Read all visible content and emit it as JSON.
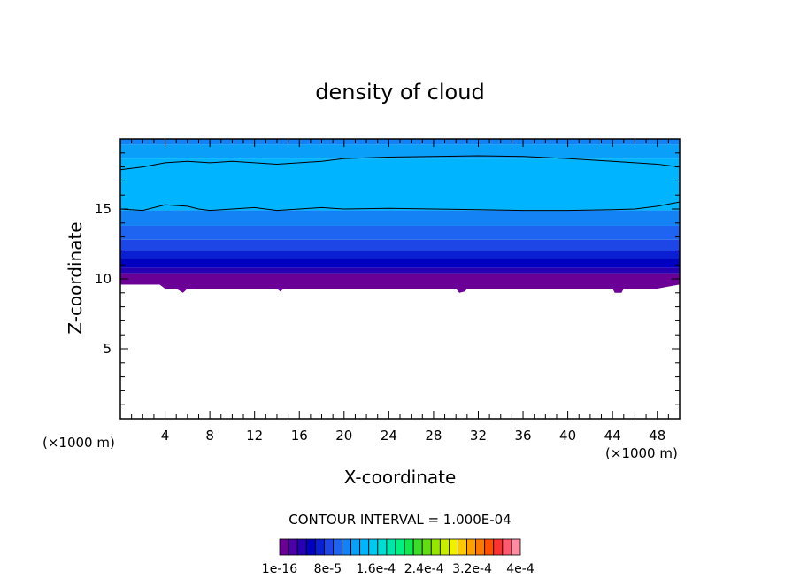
{
  "chart_data": {
    "type": "heatmap",
    "title": "density of cloud",
    "xlabel": "X-coordinate",
    "ylabel": "Z-coordinate",
    "x_unit": "(×1000 m)",
    "z_unit": "(×1000 m)",
    "xlim": [
      0,
      50
    ],
    "ylim": [
      0,
      20
    ],
    "x_ticks": [
      4,
      8,
      12,
      16,
      20,
      24,
      28,
      32,
      36,
      40,
      44,
      48
    ],
    "y_ticks": [
      5,
      10,
      15
    ],
    "contour_interval_label": "CONTOUR INTERVAL = 1.000E-04",
    "colorbar": {
      "colors": [
        "#6a0095",
        "#4b00a8",
        "#2800b4",
        "#0000c0",
        "#0a1ed2",
        "#1e46e6",
        "#1e64f0",
        "#1482f5",
        "#0aa0fa",
        "#00b4ff",
        "#00c8f0",
        "#00dcd2",
        "#00e6aa",
        "#00f082",
        "#14e650",
        "#3cdc28",
        "#64dc14",
        "#96e600",
        "#c8ec00",
        "#f0f000",
        "#ffc800",
        "#ffa000",
        "#ff7800",
        "#ff5000",
        "#ff3232",
        "#ff5a6e",
        "#ff8ca0"
      ],
      "tick_labels": [
        "1e-16",
        "8e-5",
        "1.6e-4",
        "2.4e-4",
        "3.2e-4",
        "4e-4"
      ]
    },
    "bands": [
      {
        "z_bottom": 9.6,
        "z_top": 10.4,
        "color": "#6a0095"
      },
      {
        "z_bottom": 10.4,
        "z_top": 10.8,
        "color": "#2800b4"
      },
      {
        "z_bottom": 10.8,
        "z_top": 11.4,
        "color": "#0000c0"
      },
      {
        "z_bottom": 11.4,
        "z_top": 12.0,
        "color": "#0a1ed2"
      },
      {
        "z_bottom": 12.0,
        "z_top": 12.8,
        "color": "#1e46e6"
      },
      {
        "z_bottom": 12.8,
        "z_top": 13.8,
        "color": "#1e64f0"
      },
      {
        "z_bottom": 13.8,
        "z_top": 14.9,
        "color": "#1482f5"
      },
      {
        "z_bottom": 14.9,
        "z_top": 18.6,
        "color": "#00b4ff"
      },
      {
        "z_bottom": 18.6,
        "z_top": 19.6,
        "color": "#0aa0fa"
      },
      {
        "z_bottom": 19.6,
        "z_top": 20.0,
        "color": "#1482f5"
      }
    ],
    "contour_lines": [
      {
        "name": "upper",
        "points": [
          [
            0,
            17.8
          ],
          [
            2,
            18.0
          ],
          [
            4,
            18.3
          ],
          [
            6,
            18.4
          ],
          [
            8,
            18.3
          ],
          [
            10,
            18.4
          ],
          [
            12,
            18.3
          ],
          [
            14,
            18.2
          ],
          [
            16,
            18.3
          ],
          [
            18,
            18.4
          ],
          [
            20,
            18.6
          ],
          [
            24,
            18.7
          ],
          [
            28,
            18.75
          ],
          [
            32,
            18.8
          ],
          [
            36,
            18.75
          ],
          [
            40,
            18.6
          ],
          [
            44,
            18.4
          ],
          [
            48,
            18.2
          ],
          [
            50,
            18.0
          ]
        ]
      },
      {
        "name": "lower",
        "points": [
          [
            0,
            15.0
          ],
          [
            2,
            14.9
          ],
          [
            4,
            15.3
          ],
          [
            6,
            15.2
          ],
          [
            7,
            15.0
          ],
          [
            8,
            14.9
          ],
          [
            10,
            15.0
          ],
          [
            12,
            15.1
          ],
          [
            14,
            14.9
          ],
          [
            16,
            15.0
          ],
          [
            18,
            15.1
          ],
          [
            20,
            15.0
          ],
          [
            24,
            15.05
          ],
          [
            28,
            15.0
          ],
          [
            32,
            14.95
          ],
          [
            36,
            14.9
          ],
          [
            40,
            14.9
          ],
          [
            44,
            14.95
          ],
          [
            46,
            15.0
          ],
          [
            48,
            15.2
          ],
          [
            50,
            15.5
          ]
        ]
      }
    ],
    "cloud_base": [
      [
        0,
        9.6
      ],
      [
        3.5,
        9.6
      ],
      [
        4,
        9.3
      ],
      [
        5,
        9.3
      ],
      [
        5.6,
        9.0
      ],
      [
        6,
        9.3
      ],
      [
        8,
        9.3
      ],
      [
        12,
        9.3
      ],
      [
        14,
        9.3
      ],
      [
        14.3,
        9.1
      ],
      [
        14.6,
        9.3
      ],
      [
        16,
        9.3
      ],
      [
        20,
        9.3
      ],
      [
        30,
        9.3
      ],
      [
        30.3,
        9.0
      ],
      [
        30.8,
        9.1
      ],
      [
        31,
        9.3
      ],
      [
        40,
        9.3
      ],
      [
        44,
        9.3
      ],
      [
        44.2,
        9.0
      ],
      [
        44.8,
        9.0
      ],
      [
        45,
        9.3
      ],
      [
        48,
        9.3
      ],
      [
        50,
        9.6
      ]
    ]
  }
}
